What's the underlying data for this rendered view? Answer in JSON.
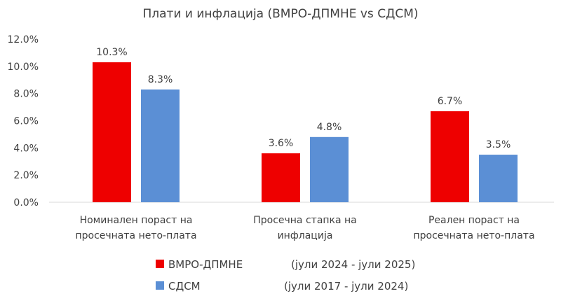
{
  "chart_data": {
    "type": "bar",
    "title": "Плати и инфлација (ВМРО-ДПМНЕ vs СДСМ)",
    "xlabel": "",
    "ylabel": "",
    "ylim": [
      0,
      12
    ],
    "yticks": [
      "0.0%",
      "2.0%",
      "4.0%",
      "6.0%",
      "8.0%",
      "10.0%",
      "12.0%"
    ],
    "grid": false,
    "legend_position": "bottom",
    "categories": [
      [
        "Номинален пораст на",
        "просечната нето-плата"
      ],
      [
        "Просечна стапка на",
        "инфлација"
      ],
      [
        "Реален пораст на",
        "просечната нето-плата"
      ]
    ],
    "series": [
      {
        "name": "ВМРО-ДПМНЕ",
        "period": "(јули 2024 - јули 2025)",
        "color": "#ee0000",
        "values": [
          10.3,
          3.6,
          6.7
        ],
        "labels": [
          "10.3%",
          "3.6%",
          "6.7%"
        ]
      },
      {
        "name": "СДСМ",
        "period": "(јули 2017 - јули 2024)",
        "color": "#5b8fd5",
        "values": [
          8.3,
          4.8,
          3.5
        ],
        "labels": [
          "8.3%",
          "4.8%",
          "3.5%"
        ]
      }
    ]
  }
}
